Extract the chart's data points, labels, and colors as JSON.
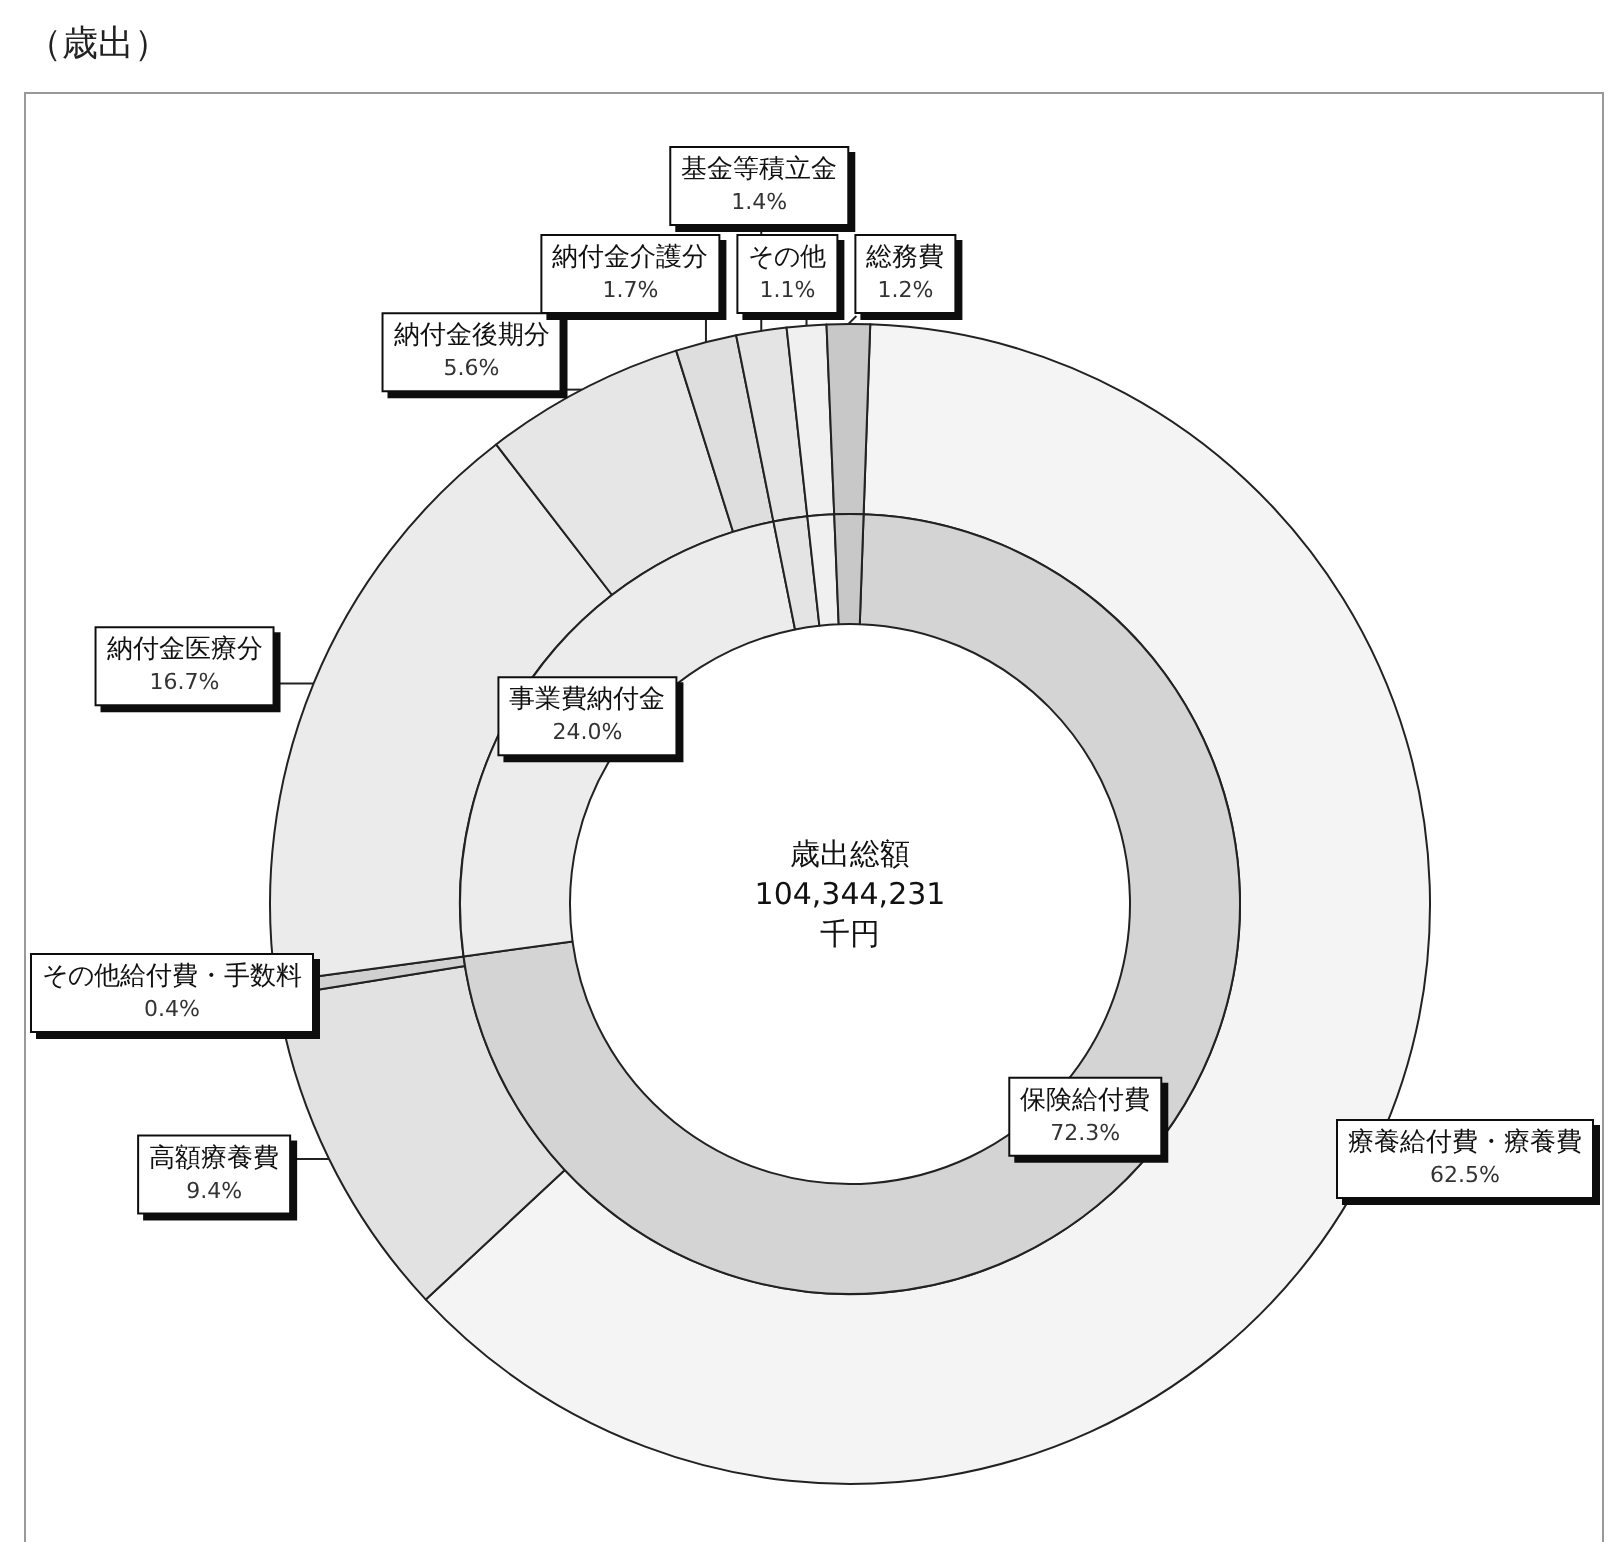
{
  "chart_data": [
    {
      "type": "donut",
      "title": "（歳出）",
      "annotations": [
        "歳出総額\n104,344,231\n千円"
      ],
      "categories": [
        "保険給付費",
        "事業費納付金",
        null,
        null,
        null
      ],
      "values": [
        72.3,
        24.0,
        1.4,
        1.1,
        1.2
      ],
      "value_labels": [
        "72.3%",
        "24.0%",
        null,
        null,
        null
      ],
      "colors": [
        "#d4d4d4",
        "#ececec",
        "#e4e4e4",
        "#f0f0f0",
        "#c8c8c8"
      ]
    },
    {
      "type": "donut",
      "categories": [
        "療養給付費・療養費",
        "高額療養費",
        "その他給付費・手数料",
        "納付金医療分",
        "納付金後期分",
        "納付金介護分",
        "基金等積立金",
        "その他",
        "総務費"
      ],
      "values": [
        62.5,
        9.4,
        0.4,
        16.7,
        5.6,
        1.7,
        1.4,
        1.1,
        1.2
      ],
      "value_labels": [
        "62.5%",
        "9.4%",
        "0.4%",
        "16.7%",
        "5.6%",
        "1.7%",
        "1.4%",
        "1.1%",
        "1.2%"
      ],
      "colors": [
        "#f4f4f4",
        "#e2e2e2",
        "#d0d0d0",
        "#ebebeb",
        "#e6e6e6",
        "#dedede",
        "#e4e4e4",
        "#f0f0f0",
        "#c8c8c8"
      ]
    }
  ]
}
